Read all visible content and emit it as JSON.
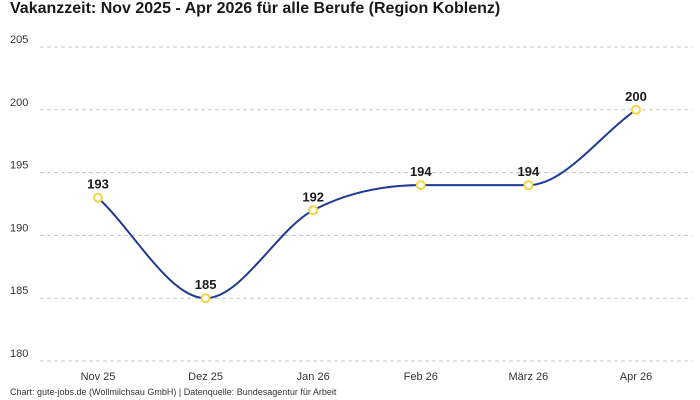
{
  "colors": {
    "line": "#1f3a93",
    "marker_stroke": "#f5d442",
    "marker_fill": "#ffffff",
    "grid": "#c8c8c8",
    "text": "#1a1a1a",
    "tick": "#333333"
  },
  "chart_data": {
    "type": "line",
    "title": "Vakanzzeit: Nov 2025 - Apr 2026 für alle Berufe (Region Koblenz)",
    "categories": [
      "Nov 25",
      "Dez 25",
      "Jan 26",
      "Feb 26",
      "März 26",
      "Apr 26"
    ],
    "series": [
      {
        "values": [
          193,
          185,
          192,
          194,
          194,
          200
        ]
      }
    ],
    "ylim": [
      180,
      205
    ],
    "yticks": [
      180,
      185,
      190,
      195,
      200,
      205
    ],
    "grid": true,
    "grid_style": "dashed",
    "data_labels": true,
    "smooth": true
  },
  "footer": "Chart: gute-jobs.de (Wollmilchsau GmbH) | Datenquelle: Bundesagentur für Arbeit"
}
